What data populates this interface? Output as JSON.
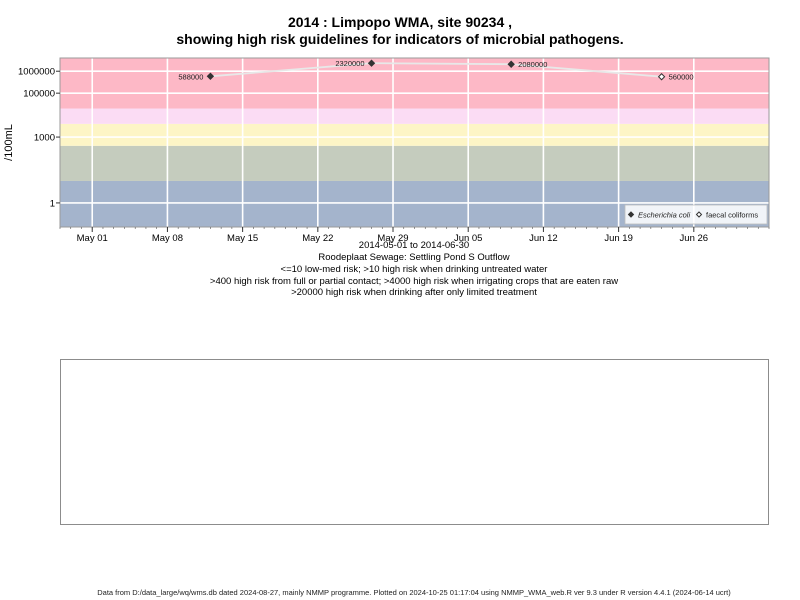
{
  "title": {
    "line1": "2014 : Limpopo WMA, site 90234 ,",
    "line2": "showing high risk guidelines for indicators of microbial pathogens."
  },
  "chart_data": {
    "type": "scatter",
    "y_scale": "log10",
    "ylabel": "/100mL",
    "xlabel": "",
    "x_range": [
      "2014-04-28",
      "2014-07-03"
    ],
    "ylim": [
      0.08,
      4000000
    ],
    "y_ticks": [
      {
        "value": 1,
        "label": "1"
      },
      {
        "value": 1000,
        "label": "1000"
      },
      {
        "value": 100000,
        "label": "100000"
      },
      {
        "value": 1000000,
        "label": "1000000"
      }
    ],
    "x_ticks": [
      {
        "date": "2014-05-01",
        "label": "May 01"
      },
      {
        "date": "2014-05-08",
        "label": "May 08"
      },
      {
        "date": "2014-05-15",
        "label": "May 15"
      },
      {
        "date": "2014-05-22",
        "label": "May 22"
      },
      {
        "date": "2014-05-29",
        "label": "May 29"
      },
      {
        "date": "2014-06-05",
        "label": "Jun 05"
      },
      {
        "date": "2014-06-12",
        "label": "Jun 12"
      },
      {
        "date": "2014-06-19",
        "label": "Jun 19"
      },
      {
        "date": "2014-06-26",
        "label": "Jun 26"
      }
    ],
    "risk_bands": [
      {
        "from": 0.08,
        "to": 10,
        "color": "#a4b4cc"
      },
      {
        "from": 10,
        "to": 400,
        "color": "#c5ccbe"
      },
      {
        "from": 400,
        "to": 4000,
        "color": "#fdf5c6"
      },
      {
        "from": 4000,
        "to": 20000,
        "color": "#fbdcf4"
      },
      {
        "from": 20000,
        "to": 4000000,
        "color": "#fdb8c6"
      }
    ],
    "grid": true,
    "legend_position": "bottom-right",
    "series": [
      {
        "name": "Escherichia coli",
        "marker": "filled-diamond",
        "color": "#333333",
        "points": [
          {
            "date": "2014-05-12",
            "value": 588000,
            "label": "588000"
          },
          {
            "date": "2014-05-27",
            "value": 2320000,
            "label": "2320000"
          },
          {
            "date": "2014-06-09",
            "value": 2080000,
            "label": "2080000"
          }
        ]
      },
      {
        "name": "faecal coliforms",
        "marker": "open-diamond",
        "color": "#333333",
        "points": [
          {
            "date": "2014-06-23",
            "value": 560000,
            "label": "560000"
          }
        ]
      }
    ],
    "connector_color": "#e8e8e8"
  },
  "captions": {
    "date_range": "2014-05-01 to 2014-06-30",
    "site_name": "Roodeplaat Sewage: Settling Pond S Outflow",
    "guideline_1": "<=10 low-med risk; >10 high risk when drinking untreated water",
    "guideline_2": ">400 high risk from full or partial contact; >4000 high risk when irrigating crops that are eaten raw",
    "guideline_3": ">20000 high risk when drinking after only limited treatment"
  },
  "footer": "Data from D:/data_large/wq/wms.db dated 2024-08-27, mainly NMMP programme. Plotted on 2024-10-25 01:17:04 using NMMP_WMA_web.R ver 9.3 under R version 4.4.1 (2024-06-14 ucrt)"
}
